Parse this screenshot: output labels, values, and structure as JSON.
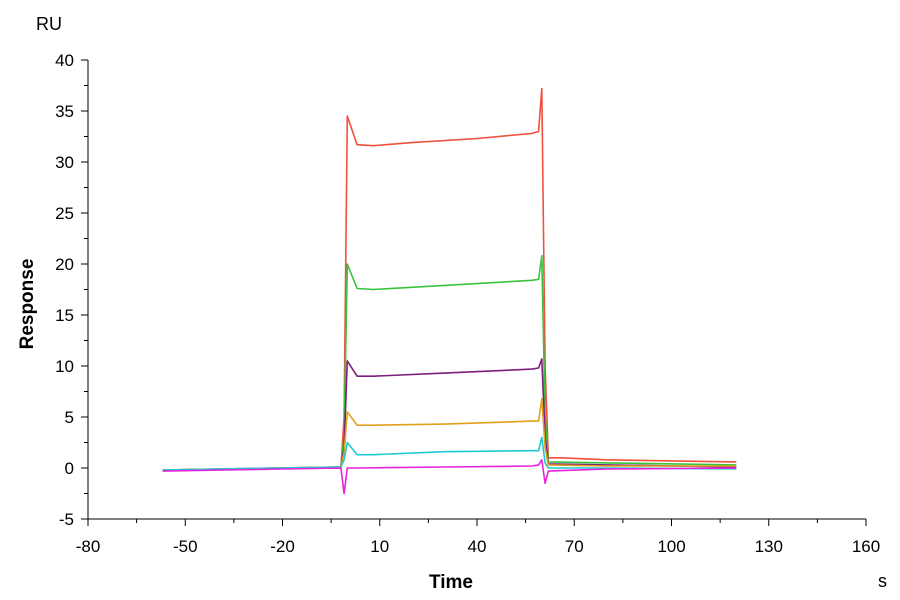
{
  "chart_data": {
    "type": "line",
    "title": "",
    "xlabel": "Time",
    "ylabel": "Response",
    "x_unit": "s",
    "y_unit": "RU",
    "xlim": [
      -80,
      160
    ],
    "ylim": [
      -5,
      40
    ],
    "x_ticks": [
      -80,
      -50,
      -20,
      10,
      40,
      70,
      100,
      130,
      160
    ],
    "y_ticks": [
      -5,
      0,
      5,
      10,
      15,
      20,
      25,
      30,
      35,
      40
    ],
    "grid": false,
    "legend": "none",
    "series": [
      {
        "color": "#F0503C",
        "points": [
          [
            -57,
            -0.2
          ],
          [
            -2,
            0.0
          ],
          [
            -1,
            5.0
          ],
          [
            0,
            34.5
          ],
          [
            3,
            31.7
          ],
          [
            8,
            31.6
          ],
          [
            20,
            31.9
          ],
          [
            40,
            32.3
          ],
          [
            57,
            32.8
          ],
          [
            59,
            33.0
          ],
          [
            60,
            37.2
          ],
          [
            61,
            10.0
          ],
          [
            62,
            1.0
          ],
          [
            66,
            1.0
          ],
          [
            80,
            0.8
          ],
          [
            100,
            0.7
          ],
          [
            120,
            0.6
          ]
        ]
      },
      {
        "color": "#36C43C",
        "points": [
          [
            -57,
            -0.2
          ],
          [
            -2,
            0.1
          ],
          [
            -1,
            3.0
          ],
          [
            0,
            20.0
          ],
          [
            3,
            17.6
          ],
          [
            8,
            17.5
          ],
          [
            30,
            17.9
          ],
          [
            57,
            18.4
          ],
          [
            59,
            18.5
          ],
          [
            60,
            20.8
          ],
          [
            61,
            5.0
          ],
          [
            62,
            0.6
          ],
          [
            80,
            0.5
          ],
          [
            120,
            0.3
          ]
        ]
      },
      {
        "color": "#7B1E7E",
        "points": [
          [
            -57,
            -0.2
          ],
          [
            -2,
            0.1
          ],
          [
            -1,
            2.0
          ],
          [
            0,
            10.5
          ],
          [
            3,
            9.0
          ],
          [
            8,
            9.0
          ],
          [
            30,
            9.3
          ],
          [
            57,
            9.7
          ],
          [
            59,
            9.8
          ],
          [
            60,
            10.7
          ],
          [
            61,
            3.0
          ],
          [
            62,
            0.4
          ],
          [
            80,
            0.3
          ],
          [
            120,
            0.1
          ]
        ]
      },
      {
        "color": "#E1A01E",
        "points": [
          [
            -57,
            -0.2
          ],
          [
            -2,
            0.1
          ],
          [
            -1,
            1.5
          ],
          [
            0,
            5.5
          ],
          [
            3,
            4.2
          ],
          [
            8,
            4.2
          ],
          [
            30,
            4.3
          ],
          [
            57,
            4.6
          ],
          [
            59,
            4.6
          ],
          [
            60,
            6.8
          ],
          [
            61,
            2.0
          ],
          [
            62,
            0.3
          ],
          [
            80,
            0.2
          ],
          [
            120,
            0.2
          ]
        ]
      },
      {
        "color": "#1ECAD2",
        "points": [
          [
            -57,
            -0.2
          ],
          [
            -2,
            0.1
          ],
          [
            -1,
            0.8
          ],
          [
            0,
            2.5
          ],
          [
            3,
            1.3
          ],
          [
            8,
            1.3
          ],
          [
            30,
            1.6
          ],
          [
            57,
            1.7
          ],
          [
            59,
            1.7
          ],
          [
            60,
            3.0
          ],
          [
            61,
            0.5
          ],
          [
            62,
            0.0
          ],
          [
            80,
            0.0
          ],
          [
            120,
            -0.1
          ]
        ]
      },
      {
        "color": "#E622DC",
        "points": [
          [
            -57,
            -0.3
          ],
          [
            -2,
            0.0
          ],
          [
            -1,
            -2.5
          ],
          [
            0,
            0.0
          ],
          [
            3,
            0.0
          ],
          [
            30,
            0.1
          ],
          [
            57,
            0.2
          ],
          [
            59,
            0.3
          ],
          [
            60,
            0.8
          ],
          [
            61,
            -1.5
          ],
          [
            62,
            -0.3
          ],
          [
            80,
            -0.1
          ],
          [
            120,
            0.0
          ]
        ]
      }
    ]
  }
}
